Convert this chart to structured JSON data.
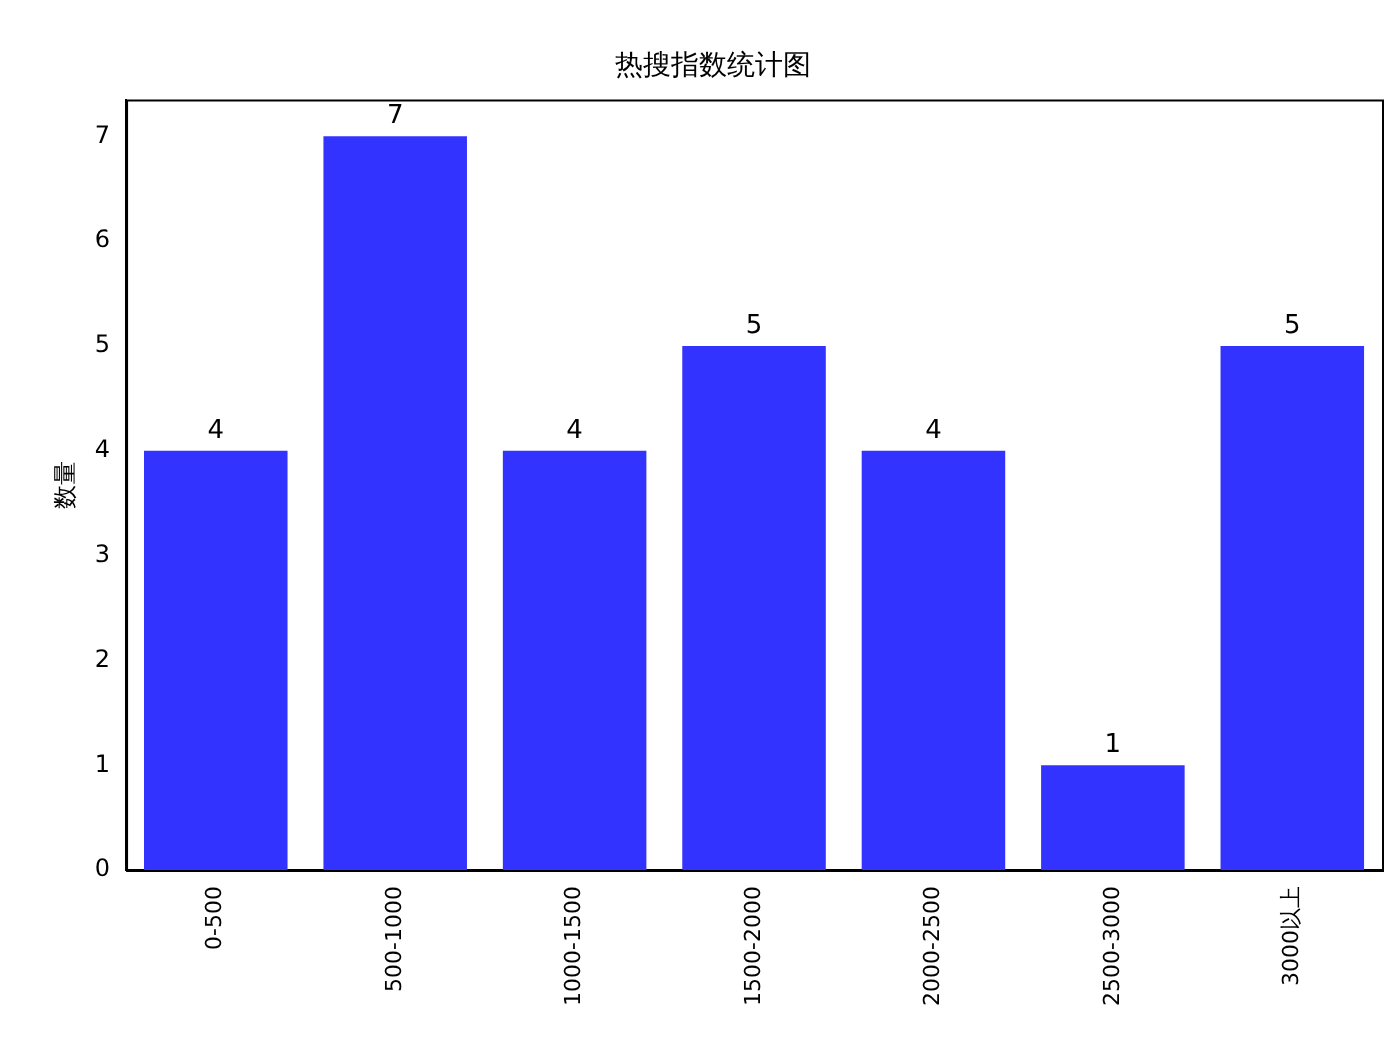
{
  "chart_data": {
    "type": "bar",
    "title": "热搜指数统计图",
    "ylabel": "数量",
    "categories": [
      "0-500",
      "500-1000",
      "1000-1500",
      "1500-2000",
      "2000-2500",
      "2500-3000",
      "3000以上"
    ],
    "values": [
      4,
      7,
      4,
      5,
      4,
      1,
      5
    ],
    "color": "#3333ff",
    "ylim": [
      0,
      7.35
    ],
    "yticks": [
      0,
      1,
      2,
      3,
      4,
      5,
      6,
      7
    ],
    "grid": false,
    "legend": false,
    "data_labels": true
  }
}
